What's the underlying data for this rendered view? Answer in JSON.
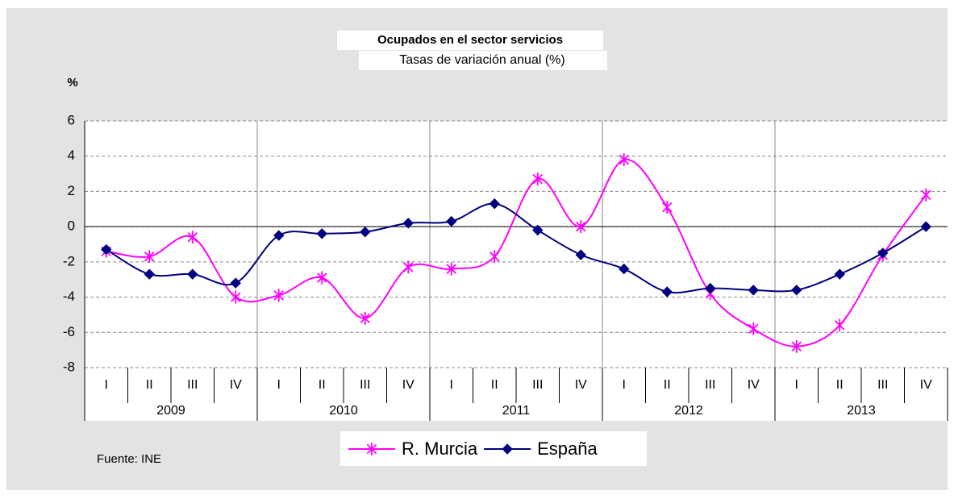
{
  "chart_data": {
    "type": "line",
    "title": "Ocupados en el sector servicios",
    "subtitle": "Tasas de variación anual (%)",
    "ylabel": "%",
    "source": "Fuente: INE",
    "categories": [
      "I",
      "II",
      "III",
      "IV",
      "I",
      "II",
      "III",
      "IV",
      "I",
      "II",
      "III",
      "IV",
      "I",
      "II",
      "III",
      "IV",
      "I",
      "II",
      "III",
      "IV"
    ],
    "years": [
      "2009",
      "2010",
      "2011",
      "2012",
      "2013"
    ],
    "series": [
      {
        "name": "R. Murcia",
        "color": "#ff00ff",
        "marker": "asterisk",
        "values": [
          -1.4,
          -1.7,
          -0.6,
          -4.0,
          -3.9,
          -2.9,
          -5.2,
          -2.3,
          -2.4,
          -1.7,
          2.7,
          0.0,
          3.8,
          1.1,
          -3.8,
          -5.8,
          -6.8,
          -5.6,
          -1.6,
          1.8
        ]
      },
      {
        "name": "España",
        "color": "#000080",
        "marker": "diamond",
        "values": [
          -1.3,
          -2.7,
          -2.7,
          -3.2,
          -0.5,
          -0.4,
          -0.3,
          0.2,
          0.3,
          1.3,
          -0.2,
          -1.6,
          -2.4,
          -3.7,
          -3.5,
          -3.6,
          -3.6,
          -2.7,
          -1.5,
          0.0
        ]
      }
    ],
    "ylim": [
      -8,
      6
    ],
    "yticks": [
      -8,
      -6,
      -4,
      -2,
      0,
      2,
      4,
      6
    ],
    "grid": true,
    "smooth": true,
    "legend": "bottom"
  }
}
